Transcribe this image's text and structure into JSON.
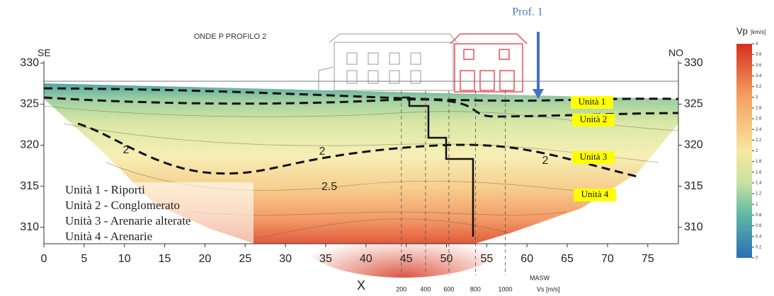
{
  "chart_data": {
    "type": "contour",
    "title": "ONDE P PROFILO 2",
    "left_label": "SE",
    "right_label": "NO",
    "x_label": "X",
    "xlim": [
      0,
      80
    ],
    "xticks": [
      0,
      5,
      10,
      15,
      20,
      25,
      30,
      35,
      40,
      45,
      50,
      55,
      60,
      65,
      70,
      75
    ],
    "ylim": [
      308,
      332
    ],
    "yticks": [
      310,
      315,
      320,
      325,
      330
    ],
    "colorbar": {
      "title": "Vp",
      "unit": "[km/s]",
      "lim": [
        0,
        4
      ],
      "ticks": [
        4,
        3.8,
        3.6,
        3.4,
        3.2,
        3,
        2.8,
        2.6,
        2.4,
        2.2,
        2,
        1.8,
        1.6,
        1.4,
        1.2,
        1,
        0.8,
        0.6,
        0.4,
        0.2,
        0
      ]
    },
    "contour_labels": [
      2,
      2,
      2,
      2.5
    ],
    "units": [
      "Unità 1",
      "Unità 2",
      "Unità 3",
      "Unità 4"
    ],
    "legend": [
      "Unità 1 - Riporti",
      "Unità 2 - Conglomerato",
      "Unità 3 - Arenarie alterate",
      "Unità 4 - Arenarie"
    ],
    "profile_label": "Prof. 1",
    "masw": {
      "label": "MASW",
      "ticks": [
        200,
        400,
        600,
        800,
        1000
      ],
      "tick_x": [
        44.4,
        47.4,
        50.3,
        53.6,
        57.3
      ],
      "unit": "Vs [m/s]"
    }
  }
}
